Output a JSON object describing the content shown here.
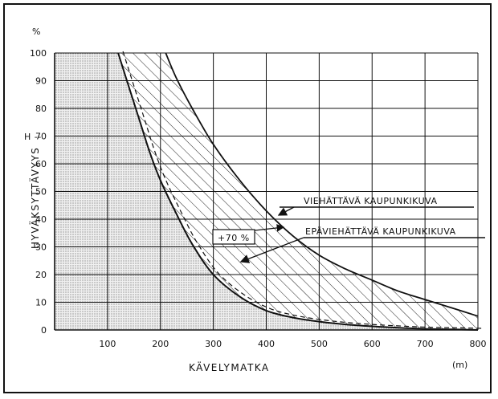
{
  "chart_data": {
    "type": "area",
    "y_unit": "%",
    "x_unit": "(m)",
    "ylabel": "HYVÄKSYTTÄVYYS",
    "xlabel": "KÄVELYMATKA",
    "y_marker": "H --",
    "x_ticks": [
      100,
      200,
      300,
      400,
      500,
      600,
      700,
      800
    ],
    "y_ticks": [
      0,
      10,
      20,
      30,
      40,
      50,
      60,
      70,
      80,
      90,
      100
    ],
    "xlim": [
      0,
      800
    ],
    "ylim": [
      0,
      100
    ],
    "grid": true,
    "series": [
      {
        "name": "VIEHÄTTÄVÄ KAUPUNKIKUVA",
        "x": [
          210,
          230,
          260,
          300,
          350,
          400,
          450,
          500,
          550,
          600,
          650,
          700,
          750,
          800
        ],
        "y": [
          100,
          91,
          80,
          67,
          54,
          43,
          34,
          27,
          22,
          18,
          14,
          11,
          8,
          5
        ]
      },
      {
        "name": "EPÄVIEHÄTTÄVÄ KAUPUNKIKUVA",
        "x": [
          120,
          140,
          160,
          180,
          200,
          230,
          260,
          300,
          350,
          400,
          450,
          500,
          550,
          600,
          650,
          700,
          750,
          800
        ],
        "y": [
          100,
          88,
          76,
          64,
          54,
          42,
          31,
          20,
          12,
          7,
          4.5,
          3,
          2,
          1.3,
          0.8,
          0.4,
          0.2,
          0
        ]
      }
    ],
    "annotations": [
      "+70 %"
    ]
  }
}
